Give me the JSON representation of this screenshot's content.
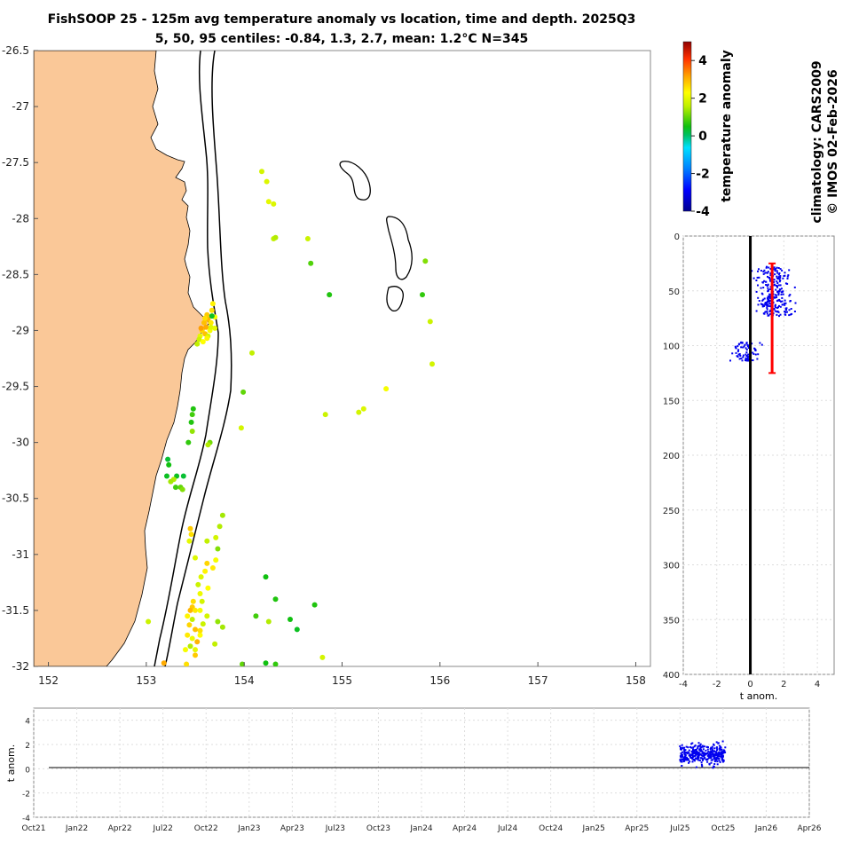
{
  "title_line1": "FishSOOP 25 - 125m avg temperature anomaly vs location, time and depth. 2025Q3",
  "title_line2": "5, 50, 95 centiles: -0.84, 1.3, 2.7, mean: 1.2°C N=345",
  "side_label_1": "climatology: CARS2009",
  "side_label_2": "© IMOS 02-Feb-2026",
  "colors": {
    "land": "#FAC898",
    "profile": "#0000EE",
    "median_bar": "#FF0000",
    "contour": "#000000"
  },
  "chart_data": [
    {
      "type": "scatter",
      "name": "map",
      "xlabel": "",
      "ylabel": "",
      "xlim": [
        151.85,
        158.15
      ],
      "ylim": [
        -32.0,
        -26.5
      ],
      "xticks": [
        152,
        153,
        154,
        155,
        156,
        157,
        158
      ],
      "yticks": [
        -26.5,
        -27,
        -27.5,
        -28,
        -28.5,
        -29,
        -29.5,
        -30,
        -30.5,
        -31,
        -31.5,
        -32
      ],
      "points": [
        [
          154.18,
          -27.58,
          1.8
        ],
        [
          154.23,
          -27.67,
          1.9
        ],
        [
          154.25,
          -27.85,
          2.0
        ],
        [
          154.3,
          -27.87,
          1.9
        ],
        [
          154.3,
          -28.18,
          1.6
        ],
        [
          154.32,
          -28.17,
          1.5
        ],
        [
          154.65,
          -28.18,
          1.7
        ],
        [
          154.68,
          -28.4,
          0.9
        ],
        [
          154.87,
          -28.68,
          0.6
        ],
        [
          155.85,
          -28.38,
          1.2
        ],
        [
          155.82,
          -28.68,
          0.7
        ],
        [
          155.9,
          -28.92,
          1.7
        ],
        [
          155.92,
          -29.3,
          1.8
        ],
        [
          153.68,
          -28.76,
          2.4
        ],
        [
          153.67,
          -28.82,
          2.6
        ],
        [
          153.62,
          -28.86,
          2.8
        ],
        [
          153.63,
          -28.9,
          3.0
        ],
        [
          153.59,
          -28.93,
          2.9
        ],
        [
          153.66,
          -28.93,
          2.5
        ],
        [
          153.61,
          -28.97,
          3.1
        ],
        [
          153.57,
          -29.0,
          2.7
        ],
        [
          153.65,
          -29.0,
          2.2
        ],
        [
          153.6,
          -29.03,
          2.9
        ],
        [
          153.55,
          -29.05,
          2.0
        ],
        [
          153.63,
          -29.05,
          1.8
        ],
        [
          153.54,
          -29.08,
          1.7
        ],
        [
          153.58,
          -29.1,
          2.3
        ],
        [
          153.66,
          -28.97,
          1.9
        ],
        [
          153.7,
          -28.88,
          2.2
        ],
        [
          153.7,
          -28.98,
          2.0
        ],
        [
          153.56,
          -28.98,
          3.2
        ],
        [
          153.62,
          -29.07,
          2.4
        ],
        [
          153.52,
          -29.12,
          1.6
        ],
        [
          153.67,
          -28.87,
          0.4
        ],
        [
          153.6,
          -28.89,
          2.6
        ],
        [
          154.08,
          -29.2,
          1.6
        ],
        [
          153.99,
          -29.55,
          1.0
        ],
        [
          153.97,
          -29.87,
          1.8
        ],
        [
          154.83,
          -29.75,
          1.7
        ],
        [
          155.17,
          -29.73,
          1.8
        ],
        [
          155.22,
          -29.7,
          1.9
        ],
        [
          155.45,
          -29.52,
          2.2
        ],
        [
          153.48,
          -29.7,
          0.6
        ],
        [
          153.47,
          -29.75,
          0.8
        ],
        [
          153.46,
          -29.82,
          0.6
        ],
        [
          153.47,
          -29.9,
          1.3
        ],
        [
          153.43,
          -30.0,
          0.7
        ],
        [
          153.65,
          -30.0,
          1.1
        ],
        [
          153.63,
          -30.02,
          1.5
        ],
        [
          153.22,
          -30.15,
          0.3
        ],
        [
          153.23,
          -30.2,
          0.5
        ],
        [
          153.21,
          -30.3,
          0.4
        ],
        [
          153.31,
          -30.3,
          0.4
        ],
        [
          153.38,
          -30.3,
          0.3
        ],
        [
          153.35,
          -30.4,
          1.0
        ],
        [
          153.3,
          -30.4,
          0.8
        ],
        [
          153.37,
          -30.42,
          1.2
        ],
        [
          153.28,
          -30.33,
          1.5
        ],
        [
          153.25,
          -30.35,
          1.4
        ],
        [
          153.45,
          -30.77,
          2.8
        ],
        [
          153.46,
          -30.82,
          2.6
        ],
        [
          153.44,
          -30.88,
          2.0
        ],
        [
          153.5,
          -31.03,
          1.9
        ],
        [
          153.71,
          -30.85,
          1.8
        ],
        [
          153.62,
          -30.88,
          1.6
        ],
        [
          153.75,
          -30.75,
          1.5
        ],
        [
          153.78,
          -30.65,
          1.4
        ],
        [
          153.73,
          -30.95,
          1.2
        ],
        [
          153.71,
          -31.05,
          2.2
        ],
        [
          153.68,
          -31.12,
          2.5
        ],
        [
          153.62,
          -31.08,
          2.7
        ],
        [
          153.6,
          -31.15,
          2.4
        ],
        [
          153.56,
          -31.2,
          1.9
        ],
        [
          153.53,
          -31.27,
          1.7
        ],
        [
          153.55,
          -31.35,
          2.1
        ],
        [
          153.63,
          -31.3,
          2.3
        ],
        [
          153.57,
          -31.42,
          1.8
        ],
        [
          153.48,
          -31.42,
          2.6
        ],
        [
          153.47,
          -31.47,
          2.8
        ],
        [
          153.45,
          -31.5,
          3.0
        ],
        [
          153.5,
          -31.5,
          2.5
        ],
        [
          153.55,
          -31.5,
          2.2
        ],
        [
          153.42,
          -31.55,
          2.4
        ],
        [
          153.47,
          -31.58,
          1.6
        ],
        [
          153.44,
          -31.63,
          2.7
        ],
        [
          153.5,
          -31.67,
          2.9
        ],
        [
          153.55,
          -31.72,
          2.3
        ],
        [
          153.47,
          -31.75,
          2.1
        ],
        [
          153.52,
          -31.78,
          3.0
        ],
        [
          153.42,
          -31.72,
          2.5
        ],
        [
          153.58,
          -31.62,
          1.7
        ],
        [
          153.45,
          -31.82,
          1.5
        ],
        [
          153.5,
          -31.85,
          2.0
        ],
        [
          153.55,
          -31.68,
          2.6
        ],
        [
          153.62,
          -31.55,
          1.8
        ],
        [
          153.73,
          -31.6,
          1.3
        ],
        [
          153.7,
          -31.8,
          1.6
        ],
        [
          153.78,
          -31.65,
          1.4
        ],
        [
          154.22,
          -31.2,
          0.5
        ],
        [
          154.32,
          -31.4,
          0.6
        ],
        [
          154.25,
          -31.6,
          1.5
        ],
        [
          154.12,
          -31.55,
          0.8
        ],
        [
          154.47,
          -31.58,
          0.5
        ],
        [
          154.54,
          -31.67,
          0.4
        ],
        [
          154.72,
          -31.45,
          0.6
        ],
        [
          154.8,
          -31.92,
          1.8
        ],
        [
          153.02,
          -31.6,
          1.7
        ],
        [
          153.18,
          -31.97,
          3.1
        ],
        [
          153.41,
          -31.98,
          2.6
        ],
        [
          153.98,
          -31.98,
          1.0
        ],
        [
          154.22,
          -31.97,
          0.5
        ],
        [
          154.32,
          -31.98,
          0.7
        ],
        [
          153.5,
          -31.9,
          2.8
        ],
        [
          153.4,
          -31.85,
          2.2
        ]
      ],
      "colorbar": {
        "label": "temperature anomaly",
        "min": -4,
        "max": 5,
        "ticks": [
          4,
          2,
          0,
          -2,
          -4
        ]
      }
    },
    {
      "type": "scatter",
      "name": "depth-profile",
      "xlabel": "t anom.",
      "ylabel": "",
      "xlim": [
        -4,
        5
      ],
      "ylim": [
        0,
        400
      ],
      "xticks": [
        -4,
        -2,
        0,
        2,
        4
      ],
      "yticks": [
        0,
        50,
        100,
        150,
        200,
        250,
        300,
        350,
        400
      ],
      "mean_anomaly": 1.2,
      "median_bar_depth_range": [
        25,
        125
      ],
      "centile_bar": [
        1.3,
        25,
        125
      ]
    },
    {
      "type": "scatter",
      "name": "time-series",
      "xlabel": "",
      "ylabel": "t anom.",
      "ylim": [
        -4,
        5
      ],
      "yticks": [
        4,
        2,
        0,
        -2,
        -4
      ],
      "categories": [
        "Oct21",
        "Jan22",
        "Apr22",
        "Jul22",
        "Oct22",
        "Jan23",
        "Apr23",
        "Jul23",
        "Oct23",
        "Jan24",
        "Apr24",
        "Jul24",
        "Oct24",
        "Jan25",
        "Apr25",
        "Jul25",
        "Oct25",
        "Jan26",
        "Apr26"
      ],
      "data_window": [
        "Jul25",
        "Oct25"
      ]
    }
  ]
}
